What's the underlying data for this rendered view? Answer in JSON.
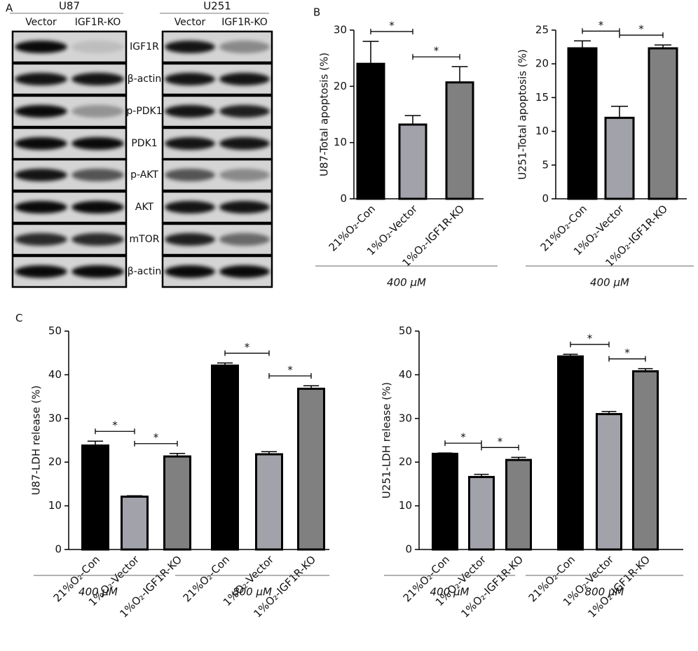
{
  "panels": [
    "A",
    "B",
    "C"
  ],
  "blot": {
    "cell_lines": [
      {
        "name": "U87",
        "lanes": [
          "Vector",
          "IGF1R-KO"
        ]
      },
      {
        "name": "U251",
        "lanes": [
          "Vector",
          "IGF1R-KO"
        ]
      }
    ],
    "proteins": [
      "IGF1R",
      "β-actin",
      "p-PDK1",
      "PDK1",
      "p-AKT",
      "AKT",
      "mTOR",
      "β-actin"
    ]
  },
  "chart_data": [
    {
      "type": "bar",
      "ylabel": "U87-Total apoptosis (%)",
      "categories": [
        "21%O₂-Con",
        "1%O₂-Vector",
        "1%O₂-IGF1R-KO"
      ],
      "values": [
        24,
        13.2,
        20.7
      ],
      "errors": [
        4,
        1.6,
        2.8
      ],
      "colors": [
        "#000000",
        "#a2a2aa",
        "#808080"
      ],
      "group_labels": [
        "400 μM"
      ],
      "ylim": [
        0,
        30
      ],
      "yticks": [
        0,
        10,
        20,
        30
      ],
      "significance": [
        {
          "label": "*",
          "between": [
            0,
            1
          ]
        },
        {
          "label": "*",
          "between": [
            1,
            2
          ]
        }
      ]
    },
    {
      "type": "bar",
      "ylabel": "U251-Total apoptosis (%)",
      "categories": [
        "21%O₂-Con",
        "1%O₂-Vector",
        "1%O₂-IGF1R-KO"
      ],
      "values": [
        22.3,
        12.0,
        22.3
      ],
      "errors": [
        1.1,
        1.7,
        0.5
      ],
      "colors": [
        "#000000",
        "#a2a2aa",
        "#808080"
      ],
      "group_labels": [
        "400 μM"
      ],
      "ylim": [
        0,
        25
      ],
      "yticks": [
        0,
        5,
        10,
        15,
        20,
        25
      ],
      "significance": [
        {
          "label": "*",
          "between": [
            0,
            1
          ]
        },
        {
          "label": "*",
          "between": [
            1,
            2
          ]
        }
      ]
    },
    {
      "type": "bar",
      "ylabel": "U87-LDH release (%)",
      "categories": [
        "21%O₂-Con",
        "1%O₂-Vector",
        "1%O₂-IGF1R-KO",
        "21%O₂-Con",
        "1%O₂-Vector",
        "1%O₂-IGF1R-KO"
      ],
      "values": [
        23.8,
        12.1,
        21.3,
        42.1,
        21.8,
        36.8
      ],
      "errors": [
        1,
        0.2,
        0.7,
        0.6,
        0.6,
        0.7
      ],
      "colors": [
        "#000000",
        "#a2a2aa",
        "#808080",
        "#000000",
        "#a2a2aa",
        "#808080"
      ],
      "group_labels": [
        "400 μM",
        "800 μM"
      ],
      "ylim": [
        0,
        50
      ],
      "yticks": [
        0,
        10,
        20,
        30,
        40,
        50
      ],
      "significance": [
        {
          "label": "*",
          "between": [
            0,
            1
          ]
        },
        {
          "label": "*",
          "between": [
            1,
            2
          ]
        },
        {
          "label": "*",
          "between": [
            3,
            4
          ]
        },
        {
          "label": "*",
          "between": [
            4,
            5
          ]
        }
      ]
    },
    {
      "type": "bar",
      "ylabel": "U251-LDH release (%)",
      "categories": [
        "21%O₂-Con",
        "1%O₂-Vector",
        "1%O₂-IGF1R-KO",
        "21%O₂-Con",
        "1%O₂-Vector",
        "1%O₂-IGF1R-KO"
      ],
      "values": [
        21.9,
        16.6,
        20.5,
        44.2,
        31.0,
        40.8
      ],
      "errors": [
        0.2,
        0.6,
        0.6,
        0.5,
        0.6,
        0.6
      ],
      "colors": [
        "#000000",
        "#a2a2aa",
        "#808080",
        "#000000",
        "#a2a2aa",
        "#808080"
      ],
      "group_labels": [
        "400 μM",
        "800 μM"
      ],
      "ylim": [
        0,
        50
      ],
      "yticks": [
        0,
        10,
        20,
        30,
        40,
        50
      ],
      "significance": [
        {
          "label": "*",
          "between": [
            0,
            1
          ]
        },
        {
          "label": "*",
          "between": [
            1,
            2
          ]
        },
        {
          "label": "*",
          "between": [
            3,
            4
          ]
        },
        {
          "label": "*",
          "between": [
            4,
            5
          ]
        }
      ]
    }
  ]
}
